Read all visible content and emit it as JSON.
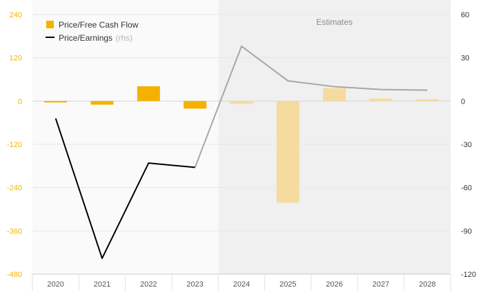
{
  "chart_data": {
    "type": "bar",
    "categories": [
      "2020",
      "2021",
      "2022",
      "2023",
      "2024",
      "2025",
      "2026",
      "2027",
      "2028"
    ],
    "series": [
      {
        "name": "Price/Free Cash Flow",
        "chart_type": "bar",
        "axis": "left",
        "values": [
          -4,
          -10,
          41,
          -21,
          -8,
          -282,
          36,
          7,
          5
        ]
      },
      {
        "name": "Price/Earnings",
        "name_suffix": "(rhs)",
        "chart_type": "line",
        "axis": "right",
        "values": [
          -12,
          -109,
          -43,
          -46,
          38,
          14,
          10,
          8,
          7.5
        ]
      }
    ],
    "estimate_start_index": 4,
    "estimates_label": "Estimates",
    "left_axis": {
      "ticks": [
        240,
        120,
        0,
        -120,
        -240,
        -360,
        -480
      ],
      "ylim": [
        -480,
        240
      ]
    },
    "right_axis": {
      "ticks": [
        60,
        30,
        0,
        -30,
        -60,
        -90,
        -120
      ],
      "ylim": [
        -120,
        60
      ]
    },
    "grid": true,
    "legend_position": "top-left",
    "colors": {
      "bar_actual": "#f5b100",
      "bar_estimate": "#f5dc9e",
      "line_actual": "#000000",
      "line_estimate": "#a6a6a6",
      "left_tick": "#f0b400",
      "estimate_shade": "#f0f0f0",
      "plot_bg": "#fafafa"
    }
  }
}
